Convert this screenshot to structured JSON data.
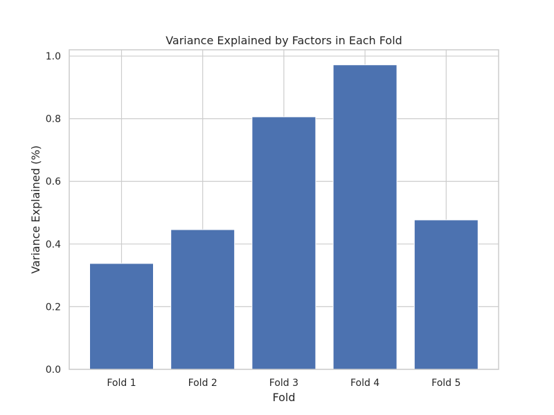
{
  "chart_data": {
    "type": "bar",
    "title": "Variance Explained by Factors in Each Fold",
    "xlabel": "Fold",
    "ylabel": "Variance Explained (%)",
    "categories": [
      "Fold 1",
      "Fold 2",
      "Fold 3",
      "Fold 4",
      "Fold 5"
    ],
    "values": [
      0.338,
      0.446,
      0.806,
      0.972,
      0.477
    ],
    "ylim": [
      0,
      1.02
    ],
    "yticks": [
      0.0,
      0.2,
      0.4,
      0.6,
      0.8,
      1.0
    ],
    "ytick_labels": [
      "0.0",
      "0.2",
      "0.4",
      "0.6",
      "0.8",
      "1.0"
    ],
    "grid": true,
    "bar_color": "#4c72b0",
    "grid_color": "#cccccc"
  }
}
